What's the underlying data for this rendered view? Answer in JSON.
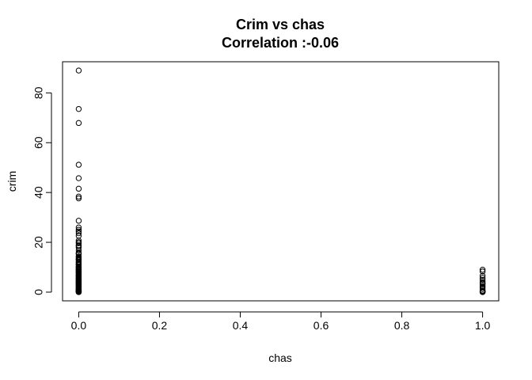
{
  "chart_data": {
    "type": "scatter",
    "title": "Crim vs chas",
    "subtitle": "Correlation :-0.06",
    "xlabel": "chas",
    "ylabel": "crim",
    "xlim": [
      -0.04,
      1.04
    ],
    "ylim": [
      -3.5,
      92.5
    ],
    "xticks": [
      0.0,
      0.2,
      0.4,
      0.6,
      0.8,
      1.0
    ],
    "xtick_labels": [
      "0.0",
      "0.2",
      "0.4",
      "0.6",
      "0.8",
      "1.0"
    ],
    "yticks": [
      0,
      20,
      40,
      60,
      80
    ],
    "ytick_labels": [
      "0",
      "20",
      "40",
      "60",
      "80"
    ],
    "grid": false,
    "marker": "open-circle",
    "series": [
      {
        "points": [
          [
            0,
            88.98
          ],
          [
            0,
            73.53
          ],
          [
            0,
            67.92
          ],
          [
            0,
            51.14
          ],
          [
            0,
            45.75
          ],
          [
            0,
            41.53
          ],
          [
            0,
            38.35
          ],
          [
            0,
            37.66
          ],
          [
            0,
            28.66
          ],
          [
            0,
            25.94
          ],
          [
            0,
            25.05
          ],
          [
            0,
            24.39
          ],
          [
            0,
            23.65
          ],
          [
            0,
            22.6
          ],
          [
            0,
            20.72
          ],
          [
            0,
            20.08
          ],
          [
            0,
            19.61
          ],
          [
            0,
            18.81
          ],
          [
            0,
            18.5
          ],
          [
            0,
            17.87
          ],
          [
            0,
            16.81
          ],
          [
            0,
            15.87
          ],
          [
            0,
            15.58
          ],
          [
            0,
            15.29
          ],
          [
            0,
            14.33
          ],
          [
            0,
            14.05
          ],
          [
            0,
            13.52
          ],
          [
            0,
            13.36
          ],
          [
            0,
            13.08
          ],
          [
            0,
            12.8
          ],
          [
            0,
            12.25
          ],
          [
            0,
            11.95
          ],
          [
            0,
            11.58
          ],
          [
            0,
            11.16
          ],
          [
            0,
            11.08
          ],
          [
            0,
            10.83
          ],
          [
            0,
            10.23
          ],
          [
            0,
            10.06
          ],
          [
            0,
            9.92
          ],
          [
            0,
            9.59
          ],
          [
            0,
            9.34
          ],
          [
            0,
            9.18
          ],
          [
            0,
            8.98
          ],
          [
            0,
            8.79
          ],
          [
            0,
            8.49
          ],
          [
            0,
            8.24
          ],
          [
            0,
            8.05
          ],
          [
            0,
            7.99
          ],
          [
            0,
            7.67
          ],
          [
            0,
            7.4
          ],
          [
            0,
            7.05
          ],
          [
            0,
            6.8
          ],
          [
            0,
            6.65
          ],
          [
            0,
            6.44
          ],
          [
            0,
            6.29
          ],
          [
            0,
            5.87
          ],
          [
            0,
            5.73
          ],
          [
            0,
            5.58
          ],
          [
            0,
            5.29
          ],
          [
            0,
            5.2
          ],
          [
            0,
            4.89
          ],
          [
            0,
            4.75
          ],
          [
            0,
            4.54
          ],
          [
            0,
            4.42
          ],
          [
            0,
            4.22
          ],
          [
            0,
            4.03
          ],
          [
            0,
            3.85
          ],
          [
            0,
            3.69
          ],
          [
            0,
            3.47
          ],
          [
            0,
            3.32
          ],
          [
            0,
            3.16
          ],
          [
            0,
            2.92
          ],
          [
            0,
            2.73
          ],
          [
            0,
            2.45
          ],
          [
            0,
            2.24
          ],
          [
            0,
            2.15
          ],
          [
            0,
            1.83
          ],
          [
            0,
            1.63
          ],
          [
            0,
            1.42
          ],
          [
            0,
            1.23
          ],
          [
            0,
            1.13
          ],
          [
            0,
            0.95
          ],
          [
            0,
            0.84
          ],
          [
            0,
            0.73
          ],
          [
            0,
            0.63
          ],
          [
            0,
            0.53
          ],
          [
            0,
            0.44
          ],
          [
            0,
            0.34
          ],
          [
            0,
            0.25
          ],
          [
            0,
            0.15
          ],
          [
            0,
            0.08
          ],
          [
            0,
            0.03
          ],
          [
            0,
            0.01
          ],
          [
            1,
            8.98
          ],
          [
            1,
            8.27
          ],
          [
            1,
            6.54
          ],
          [
            1,
            5.67
          ],
          [
            1,
            4.89
          ],
          [
            1,
            4.06
          ],
          [
            1,
            3.54
          ],
          [
            1,
            3.16
          ],
          [
            1,
            2.45
          ],
          [
            1,
            1.83
          ],
          [
            1,
            1.23
          ],
          [
            1,
            0.63
          ],
          [
            1,
            0.35
          ],
          [
            1,
            0.14
          ],
          [
            1,
            0.05
          ],
          [
            1,
            0.01
          ]
        ]
      }
    ]
  }
}
